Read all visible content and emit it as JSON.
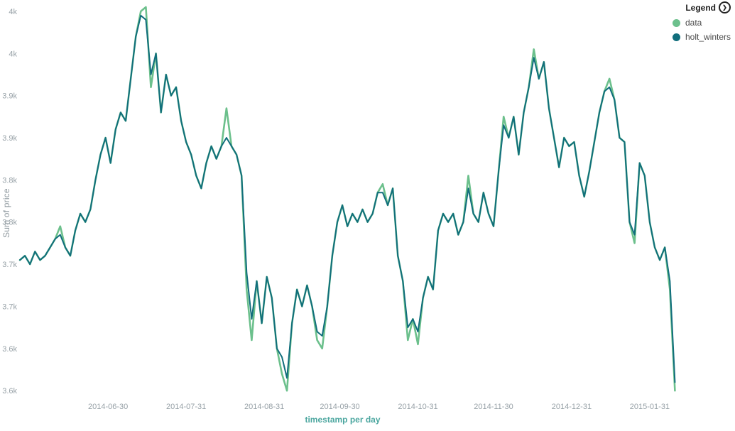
{
  "legend": {
    "title": "Legend",
    "items": [
      {
        "label": "data",
        "color": "#6cc08c"
      },
      {
        "label": "holt_winters",
        "color": "#116e7c"
      }
    ]
  },
  "chart_data": {
    "type": "line",
    "title": "",
    "xlabel": "timestamp per day",
    "ylabel": "Sum of price",
    "x_start": "2014-05-26",
    "x_step_days": 2,
    "xlim_days": [
      0,
      283
    ],
    "ylim": [
      3.585,
      4.055
    ],
    "grid": false,
    "legend_position": "top-right",
    "x_ticks": [
      {
        "day": 35,
        "label": "2014-06-30"
      },
      {
        "day": 66,
        "label": "2014-07-31"
      },
      {
        "day": 97,
        "label": "2014-08-31"
      },
      {
        "day": 127,
        "label": "2014-09-30"
      },
      {
        "day": 158,
        "label": "2014-10-31"
      },
      {
        "day": 188,
        "label": "2014-11-30"
      },
      {
        "day": 219,
        "label": "2014-12-31"
      },
      {
        "day": 250,
        "label": "2015-01-31"
      }
    ],
    "y_ticks": [
      {
        "value": 3.6,
        "label": "3.6k"
      },
      {
        "value": 3.65,
        "label": "3.6k"
      },
      {
        "value": 3.7,
        "label": "3.7k"
      },
      {
        "value": 3.75,
        "label": "3.7k"
      },
      {
        "value": 3.8,
        "label": "3.8k"
      },
      {
        "value": 3.85,
        "label": "3.8k"
      },
      {
        "value": 3.9,
        "label": "3.9k"
      },
      {
        "value": 3.95,
        "label": "3.9k"
      },
      {
        "value": 4.0,
        "label": "4k"
      },
      {
        "value": 4.05,
        "label": "4k"
      }
    ],
    "series": [
      {
        "name": "data",
        "color": "#6cc08c",
        "stroke_width": 2.6,
        "values": [
          3.755,
          3.76,
          3.75,
          3.765,
          3.755,
          3.76,
          3.77,
          3.78,
          3.795,
          3.77,
          3.76,
          3.79,
          3.81,
          3.8,
          3.815,
          3.85,
          3.88,
          3.9,
          3.87,
          3.91,
          3.93,
          3.92,
          3.97,
          4.02,
          4.05,
          4.055,
          3.96,
          4.0,
          3.93,
          3.975,
          3.95,
          3.96,
          3.92,
          3.895,
          3.88,
          3.855,
          3.84,
          3.87,
          3.89,
          3.875,
          3.89,
          3.935,
          3.89,
          3.88,
          3.855,
          3.72,
          3.66,
          3.73,
          3.68,
          3.735,
          3.71,
          3.65,
          3.62,
          3.6,
          3.68,
          3.72,
          3.7,
          3.725,
          3.7,
          3.66,
          3.65,
          3.7,
          3.76,
          3.8,
          3.82,
          3.795,
          3.81,
          3.8,
          3.815,
          3.8,
          3.81,
          3.835,
          3.845,
          3.82,
          3.84,
          3.76,
          3.73,
          3.66,
          3.685,
          3.655,
          3.71,
          3.735,
          3.72,
          3.79,
          3.81,
          3.8,
          3.81,
          3.785,
          3.8,
          3.855,
          3.81,
          3.8,
          3.835,
          3.81,
          3.795,
          3.86,
          3.925,
          3.9,
          3.925,
          3.88,
          3.93,
          3.96,
          4.005,
          3.97,
          3.99,
          3.935,
          3.9,
          3.865,
          3.9,
          3.89,
          3.895,
          3.855,
          3.83,
          3.86,
          3.895,
          3.93,
          3.955,
          3.97,
          3.945,
          3.9,
          3.895,
          3.8,
          3.775,
          3.87,
          3.855,
          3.8,
          3.77,
          3.755,
          3.77,
          3.72,
          3.6
        ]
      },
      {
        "name": "holt_winters",
        "color": "#116e7c",
        "stroke_width": 2,
        "values": [
          3.755,
          3.76,
          3.75,
          3.765,
          3.755,
          3.76,
          3.77,
          3.78,
          3.785,
          3.77,
          3.76,
          3.79,
          3.81,
          3.8,
          3.815,
          3.85,
          3.88,
          3.9,
          3.87,
          3.91,
          3.93,
          3.92,
          3.97,
          4.02,
          4.045,
          4.04,
          3.975,
          4.0,
          3.93,
          3.975,
          3.95,
          3.96,
          3.92,
          3.895,
          3.88,
          3.855,
          3.84,
          3.87,
          3.89,
          3.875,
          3.89,
          3.9,
          3.89,
          3.88,
          3.855,
          3.74,
          3.685,
          3.73,
          3.68,
          3.735,
          3.71,
          3.65,
          3.64,
          3.615,
          3.68,
          3.72,
          3.7,
          3.725,
          3.7,
          3.67,
          3.665,
          3.7,
          3.76,
          3.8,
          3.82,
          3.795,
          3.81,
          3.8,
          3.815,
          3.8,
          3.81,
          3.835,
          3.835,
          3.82,
          3.84,
          3.76,
          3.73,
          3.675,
          3.685,
          3.67,
          3.71,
          3.735,
          3.72,
          3.79,
          3.81,
          3.8,
          3.81,
          3.785,
          3.8,
          3.84,
          3.81,
          3.8,
          3.835,
          3.81,
          3.795,
          3.86,
          3.915,
          3.9,
          3.925,
          3.88,
          3.93,
          3.96,
          3.995,
          3.97,
          3.99,
          3.935,
          3.9,
          3.865,
          3.9,
          3.89,
          3.895,
          3.855,
          3.83,
          3.86,
          3.895,
          3.93,
          3.955,
          3.96,
          3.945,
          3.9,
          3.895,
          3.8,
          3.785,
          3.87,
          3.855,
          3.8,
          3.77,
          3.755,
          3.77,
          3.73,
          3.61
        ]
      }
    ]
  }
}
